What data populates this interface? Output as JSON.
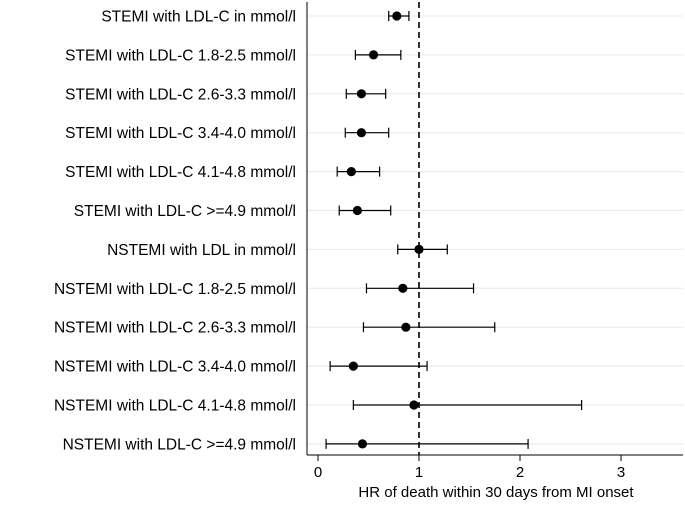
{
  "chart_data": {
    "type": "forest",
    "xlabel": "HR of death within 30 days from MI onset",
    "ylabel": "",
    "xlim": [
      -0.1,
      3.6
    ],
    "xticks": [
      0,
      1,
      2,
      3
    ],
    "xtick_labels": [
      "0",
      "1",
      "2",
      "3"
    ],
    "reference_line": 1,
    "grid": true,
    "colors": {
      "marker": "#000000",
      "grid": "#e8e8e8",
      "axis": "#000000"
    },
    "rows": [
      {
        "label": "STEMI with LDL-C in mmol/l",
        "hr": 0.78,
        "lower": 0.7,
        "upper": 0.9
      },
      {
        "label": "STEMI with LDL-C 1.8-2.5 mmol/l",
        "hr": 0.55,
        "lower": 0.37,
        "upper": 0.82
      },
      {
        "label": "STEMI with LDL-C 2.6-3.3 mmol/l",
        "hr": 0.43,
        "lower": 0.28,
        "upper": 0.67
      },
      {
        "label": "STEMI with LDL-C 3.4-4.0 mmol/l",
        "hr": 0.43,
        "lower": 0.27,
        "upper": 0.7
      },
      {
        "label": "STEMI with LDL-C 4.1-4.8 mmol/l",
        "hr": 0.33,
        "lower": 0.19,
        "upper": 0.61
      },
      {
        "label": "STEMI with LDL-C >=4.9 mmol/l",
        "hr": 0.39,
        "lower": 0.21,
        "upper": 0.72
      },
      {
        "label": "NSTEMI with LDL in mmol/l",
        "hr": 1.0,
        "lower": 0.79,
        "upper": 1.28
      },
      {
        "label": "NSTEMI with LDL-C 1.8-2.5 mmol/l",
        "hr": 0.84,
        "lower": 0.48,
        "upper": 1.54
      },
      {
        "label": "NSTEMI with LDL-C 2.6-3.3 mmol/l",
        "hr": 0.87,
        "lower": 0.45,
        "upper": 1.75
      },
      {
        "label": "NSTEMI with LDL-C 3.4-4.0 mmol/l",
        "hr": 0.35,
        "lower": 0.12,
        "upper": 1.08
      },
      {
        "label": "NSTEMI with LDL-C 4.1-4.8 mmol/l",
        "hr": 0.95,
        "lower": 0.35,
        "upper": 2.61
      },
      {
        "label": "NSTEMI with LDL-C >=4.9 mmol/l",
        "hr": 0.44,
        "lower": 0.08,
        "upper": 2.08
      }
    ]
  }
}
